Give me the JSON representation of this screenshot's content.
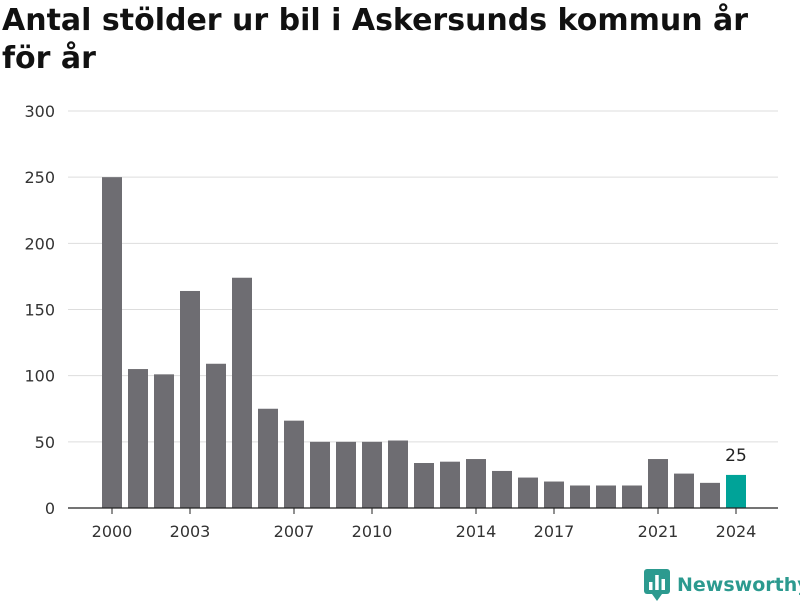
{
  "chart_data": {
    "type": "bar",
    "title": "Antal stölder ur bil i Askersunds kommun år för år",
    "xlabel": "",
    "ylabel": "",
    "categories": [
      2000,
      2001,
      2002,
      2003,
      2004,
      2005,
      2006,
      2007,
      2008,
      2009,
      2010,
      2011,
      2012,
      2013,
      2014,
      2015,
      2016,
      2017,
      2018,
      2019,
      2020,
      2021,
      2022,
      2023,
      2024
    ],
    "values": [
      250,
      105,
      101,
      164,
      109,
      174,
      75,
      66,
      50,
      50,
      50,
      51,
      34,
      35,
      37,
      28,
      23,
      20,
      17,
      17,
      17,
      37,
      26,
      19,
      25
    ],
    "ylim": [
      0,
      300
    ],
    "yticks": [
      0,
      50,
      100,
      150,
      200,
      250,
      300
    ],
    "xticks": [
      2000,
      2003,
      2007,
      2010,
      2014,
      2017,
      2021,
      2024
    ],
    "grid": true,
    "colors": {
      "bar": "#6e6d72",
      "highlight": "#00a398",
      "grid": "#dddddd",
      "axis": "#222222"
    },
    "highlight_index": 24,
    "annotations": [
      {
        "category": 2024,
        "text": "25"
      }
    ]
  },
  "brand": {
    "name": "Newsworthy",
    "color": "#2c9a8f"
  }
}
